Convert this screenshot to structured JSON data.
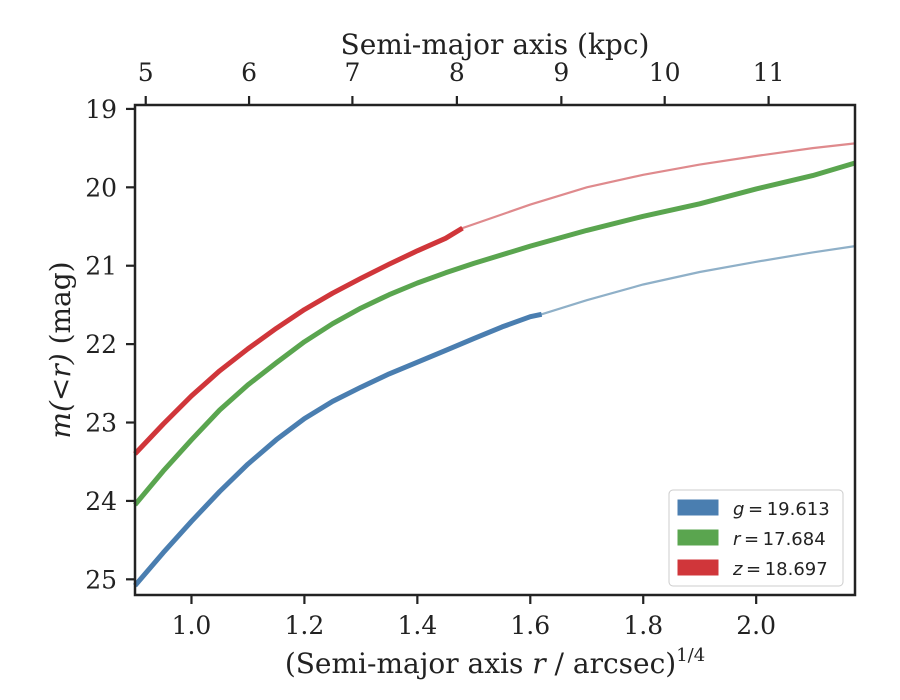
{
  "chart_data": {
    "type": "line",
    "xlabel_prefix": "(Semi-major axis ",
    "xlabel_var": "r",
    "xlabel_suffix": " / arcsec)",
    "xlabel_exp": "1/4",
    "ylabel_lhs": "m(<r)",
    "ylabel_unit": " (mag)",
    "top_xlabel": "Semi-major axis (kpc)",
    "xlim": [
      0.9,
      2.175
    ],
    "ylim": [
      25.2,
      18.95
    ],
    "y_inverted": true,
    "x_ticks": [
      1.0,
      1.2,
      1.4,
      1.6,
      1.8,
      2.0
    ],
    "x_tick_labels": [
      "1.0",
      "1.2",
      "1.4",
      "1.6",
      "1.8",
      "2.0"
    ],
    "y_ticks": [
      19,
      20,
      21,
      22,
      23,
      24,
      25
    ],
    "y_tick_labels": [
      "19",
      "20",
      "21",
      "22",
      "23",
      "24",
      "25"
    ],
    "top_ticks": [
      {
        "x": 0.919,
        "label": "5"
      },
      {
        "x": 1.102,
        "label": "6"
      },
      {
        "x": 1.285,
        "label": "7"
      },
      {
        "x": 1.47,
        "label": "8"
      },
      {
        "x": 1.655,
        "label": "9"
      },
      {
        "x": 1.838,
        "label": "10"
      },
      {
        "x": 2.022,
        "label": "11"
      }
    ],
    "legend_position": "lower-right",
    "grid": false,
    "series": [
      {
        "name": "g = 19.613",
        "band": "g",
        "value_text": "19.613",
        "color": "#4a7eb0",
        "faint_color": "#8fb0c8",
        "measured_until_x": 1.62,
        "x": [
          0.9,
          0.95,
          1.0,
          1.05,
          1.1,
          1.15,
          1.2,
          1.25,
          1.3,
          1.35,
          1.4,
          1.45,
          1.5,
          1.55,
          1.6,
          1.62,
          1.7,
          1.8,
          1.9,
          2.0,
          2.1,
          2.175
        ],
        "y": [
          25.08,
          24.66,
          24.26,
          23.88,
          23.53,
          23.22,
          22.95,
          22.73,
          22.55,
          22.38,
          22.23,
          22.08,
          21.93,
          21.78,
          21.65,
          21.62,
          21.44,
          21.24,
          21.08,
          20.95,
          20.83,
          20.75
        ]
      },
      {
        "name": "r = 17.684",
        "band": "r",
        "value_text": "17.684",
        "color": "#5aa54f",
        "faint_color": "#8cc184",
        "measured_until_x": 2.175,
        "x": [
          0.9,
          0.95,
          1.0,
          1.05,
          1.1,
          1.15,
          1.2,
          1.25,
          1.3,
          1.35,
          1.4,
          1.45,
          1.5,
          1.6,
          1.7,
          1.8,
          1.9,
          2.0,
          2.1,
          2.175
        ],
        "y": [
          24.05,
          23.62,
          23.22,
          22.84,
          22.52,
          22.24,
          21.97,
          21.74,
          21.54,
          21.37,
          21.22,
          21.09,
          20.97,
          20.75,
          20.55,
          20.37,
          20.21,
          20.02,
          19.85,
          19.69
        ]
      },
      {
        "name": "z = 18.697",
        "band": "z",
        "value_text": "18.697",
        "color": "#d0363a",
        "faint_color": "#df8a8d",
        "measured_until_x": 1.48,
        "x": [
          0.9,
          0.95,
          1.0,
          1.05,
          1.1,
          1.15,
          1.2,
          1.25,
          1.3,
          1.35,
          1.4,
          1.45,
          1.48,
          1.6,
          1.7,
          1.8,
          1.9,
          2.0,
          2.1,
          2.175
        ],
        "y": [
          23.4,
          23.02,
          22.66,
          22.34,
          22.06,
          21.8,
          21.56,
          21.35,
          21.16,
          20.98,
          20.81,
          20.65,
          20.52,
          20.22,
          20.0,
          19.84,
          19.71,
          19.6,
          19.5,
          19.44
        ]
      }
    ]
  }
}
